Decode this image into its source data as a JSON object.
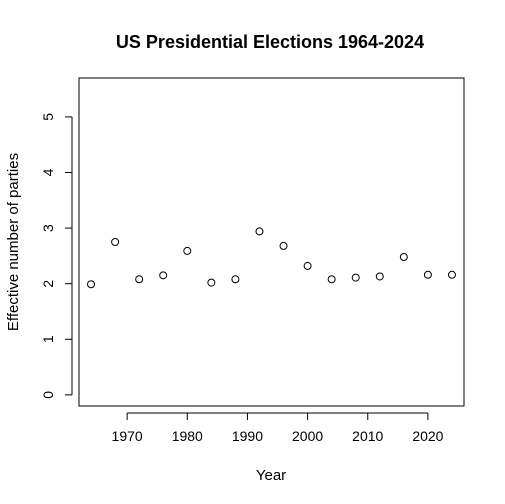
{
  "chart_data": {
    "type": "scatter",
    "title": "US Presidential Elections 1964-2024",
    "xlabel": "Year",
    "ylabel": "Effective number of parties",
    "xlim": [
      1962,
      2026
    ],
    "ylim": [
      -0.2,
      5.7
    ],
    "x_ticks": [
      1970,
      1980,
      1990,
      2000,
      2010,
      2020
    ],
    "y_ticks": [
      0,
      1,
      2,
      3,
      4,
      5
    ],
    "grid": false,
    "legend": "none",
    "series": [
      {
        "x": [
          1964,
          1968,
          1972,
          1976,
          1980,
          1984,
          1988,
          1992,
          1996,
          2000,
          2004,
          2008,
          2012,
          2016,
          2020,
          2024
        ],
        "y": [
          1.99,
          2.75,
          2.08,
          2.15,
          2.59,
          2.02,
          2.08,
          2.94,
          2.68,
          2.32,
          2.08,
          2.11,
          2.13,
          2.48,
          2.16,
          2.16
        ]
      }
    ]
  }
}
